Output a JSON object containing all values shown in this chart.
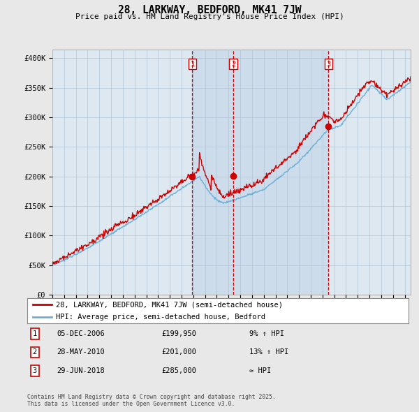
{
  "title": "28, LARKWAY, BEDFORD, MK41 7JW",
  "subtitle": "Price paid vs. HM Land Registry's House Price Index (HPI)",
  "ylabel_ticks": [
    "£0",
    "£50K",
    "£100K",
    "£150K",
    "£200K",
    "£250K",
    "£300K",
    "£350K",
    "£400K"
  ],
  "ytick_values": [
    0,
    50000,
    100000,
    150000,
    200000,
    250000,
    300000,
    350000,
    400000
  ],
  "ylim": [
    0,
    415000
  ],
  "xlim_start": 1995,
  "xlim_end": 2025.5,
  "background_color": "#e8e8e8",
  "plot_bg_color": "#ffffff",
  "chart_bg_color": "#dde8f0",
  "red_line_color": "#cc0000",
  "blue_line_color": "#6baed6",
  "shade_color": "#c6d8ea",
  "transaction_lines": [
    {
      "x": 2006.92,
      "label": "1",
      "price": 199950,
      "marker_y": 199950
    },
    {
      "x": 2010.41,
      "label": "2",
      "price": 201000,
      "marker_y": 201000
    },
    {
      "x": 2018.5,
      "label": "3",
      "price": 285000,
      "marker_y": 285000
    }
  ],
  "legend_entries": [
    {
      "label": "28, LARKWAY, BEDFORD, MK41 7JW (semi-detached house)",
      "color": "#cc0000"
    },
    {
      "label": "HPI: Average price, semi-detached house, Bedford",
      "color": "#6baed6"
    }
  ],
  "table_rows": [
    {
      "num": "1",
      "date": "05-DEC-2006",
      "price": "£199,950",
      "hpi": "9% ↑ HPI"
    },
    {
      "num": "2",
      "date": "28-MAY-2010",
      "price": "£201,000",
      "hpi": "13% ↑ HPI"
    },
    {
      "num": "3",
      "date": "29-JUN-2018",
      "price": "£285,000",
      "hpi": "≈ HPI"
    }
  ],
  "footnote": "Contains HM Land Registry data © Crown copyright and database right 2025.\nThis data is licensed under the Open Government Licence v3.0."
}
